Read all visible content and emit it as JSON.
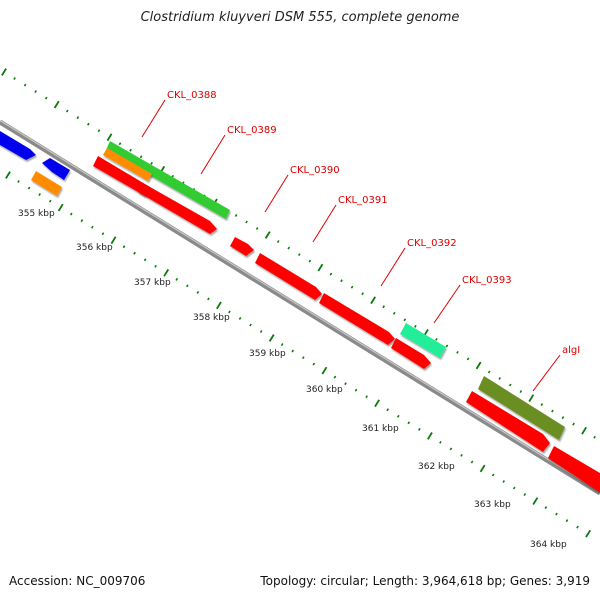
{
  "title": "Clostridium kluyveri DSM 555, complete genome",
  "accession": "Accession: NC_009706",
  "topology": "Topology: circular; Length: 3,964,618 bp; Genes: 3,919",
  "colors": {
    "label": "#dd0000",
    "backbone": "#8a8a8a",
    "tick": "#0a7a0a",
    "cds": "#ff0000",
    "blue": "#0000ee",
    "orange": "#ff8c00",
    "green": "#33cc33",
    "teal": "#22ee99",
    "olive": "#6b8e23"
  },
  "kbp_labels": [
    "355 kbp",
    "356 kbp",
    "357 kbp",
    "358 kbp",
    "359 kbp",
    "360 kbp",
    "361 kbp",
    "362 kbp",
    "363 kbp",
    "364 kbp"
  ],
  "gene_labels": [
    "CKL_0388",
    "CKL_0389",
    "CKL_0390",
    "CKL_0391",
    "CKL_0392",
    "CKL_0393",
    "algI"
  ]
}
